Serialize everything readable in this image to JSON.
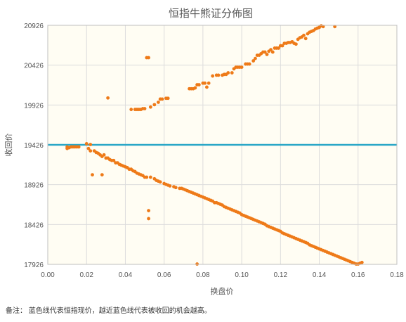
{
  "note": "备注：  蓝色线代表恒指现价，越近蓝色线代表被收回的机会越高。",
  "chart_data": {
    "type": "scatter",
    "title": "恒指牛熊证分佈图",
    "xlabel": "换盘价",
    "ylabel": "收回价",
    "xlim": [
      0,
      0.18
    ],
    "ylim": [
      17926,
      20926
    ],
    "x_ticks": [
      "0.00",
      "0.02",
      "0.04",
      "0.06",
      "0.08",
      "0.10",
      "0.12",
      "0.14",
      "0.16",
      "0.18"
    ],
    "y_ticks": [
      "17926",
      "18426",
      "18926",
      "19426",
      "19926",
      "20426",
      "20926"
    ],
    "grid": true,
    "reference_line": {
      "y": 19426,
      "color": "#2aa7c7"
    },
    "point_color": "#ee7a18",
    "series": [
      {
        "points": [
          [
            0.031,
            20014
          ],
          [
            0.043,
            19870
          ],
          [
            0.045,
            19870
          ],
          [
            0.046,
            19870
          ],
          [
            0.047,
            19870
          ],
          [
            0.048,
            19870
          ],
          [
            0.049,
            19880
          ],
          [
            0.05,
            19880
          ],
          [
            0.051,
            20520
          ],
          [
            0.052,
            20520
          ],
          [
            0.053,
            19900
          ],
          [
            0.055,
            19930
          ],
          [
            0.057,
            19960
          ],
          [
            0.058,
            20000
          ],
          [
            0.059,
            20000
          ],
          [
            0.061,
            20010
          ],
          [
            0.062,
            20010
          ],
          [
            0.073,
            20130
          ],
          [
            0.074,
            20130
          ],
          [
            0.075,
            20130
          ],
          [
            0.076,
            20140
          ],
          [
            0.077,
            20180
          ],
          [
            0.078,
            20180
          ],
          [
            0.08,
            20200
          ],
          [
            0.081,
            20200
          ],
          [
            0.082,
            20150
          ],
          [
            0.083,
            20200
          ],
          [
            0.085,
            20290
          ],
          [
            0.087,
            20300
          ],
          [
            0.088,
            20300
          ],
          [
            0.09,
            20300
          ],
          [
            0.091,
            20310
          ],
          [
            0.092,
            20310
          ],
          [
            0.093,
            20330
          ],
          [
            0.095,
            20330
          ],
          [
            0.096,
            20380
          ],
          [
            0.097,
            20400
          ],
          [
            0.098,
            20400
          ],
          [
            0.099,
            20400
          ],
          [
            0.1,
            20400
          ],
          [
            0.102,
            20440
          ],
          [
            0.103,
            20440
          ],
          [
            0.104,
            20440
          ],
          [
            0.106,
            20480
          ],
          [
            0.107,
            20510
          ],
          [
            0.108,
            20550
          ],
          [
            0.109,
            20550
          ],
          [
            0.11,
            20570
          ],
          [
            0.111,
            20590
          ],
          [
            0.112,
            20590
          ],
          [
            0.113,
            20560
          ],
          [
            0.114,
            20600
          ],
          [
            0.115,
            20620
          ],
          [
            0.116,
            20590
          ],
          [
            0.117,
            20640
          ],
          [
            0.118,
            20640
          ],
          [
            0.119,
            20640
          ],
          [
            0.12,
            20670
          ],
          [
            0.121,
            20670
          ],
          [
            0.122,
            20700
          ],
          [
            0.123,
            20700
          ],
          [
            0.124,
            20710
          ],
          [
            0.125,
            20710
          ],
          [
            0.126,
            20720
          ],
          [
            0.127,
            20700
          ],
          [
            0.128,
            20690
          ],
          [
            0.129,
            20750
          ],
          [
            0.13,
            20770
          ],
          [
            0.131,
            20780
          ],
          [
            0.132,
            20800
          ],
          [
            0.133,
            20760
          ],
          [
            0.134,
            20820
          ],
          [
            0.135,
            20840
          ],
          [
            0.136,
            20850
          ],
          [
            0.137,
            20860
          ],
          [
            0.138,
            20880
          ],
          [
            0.139,
            20890
          ],
          [
            0.14,
            20900
          ],
          [
            0.141,
            20920
          ],
          [
            0.142,
            20910
          ],
          [
            0.148,
            20910
          ]
        ]
      },
      {
        "points": [
          [
            0.01,
            19380
          ],
          [
            0.01,
            19400
          ],
          [
            0.011,
            19390
          ],
          [
            0.012,
            19400
          ],
          [
            0.013,
            19400
          ],
          [
            0.014,
            19400
          ],
          [
            0.015,
            19400
          ],
          [
            0.016,
            19400
          ],
          [
            0.02,
            19440
          ],
          [
            0.021,
            19380
          ],
          [
            0.022,
            19350
          ],
          [
            0.022,
            19430
          ],
          [
            0.023,
            19050
          ],
          [
            0.024,
            19350
          ],
          [
            0.025,
            19330
          ],
          [
            0.026,
            19320
          ],
          [
            0.027,
            19300
          ],
          [
            0.028,
            19280
          ],
          [
            0.028,
            19050
          ],
          [
            0.029,
            19300
          ],
          [
            0.03,
            19260
          ],
          [
            0.031,
            19260
          ],
          [
            0.032,
            19240
          ],
          [
            0.033,
            19230
          ],
          [
            0.034,
            19230
          ],
          [
            0.035,
            19200
          ],
          [
            0.036,
            19200
          ],
          [
            0.037,
            19180
          ],
          [
            0.038,
            19170
          ],
          [
            0.039,
            19160
          ],
          [
            0.04,
            19150
          ],
          [
            0.041,
            19140
          ],
          [
            0.042,
            19120
          ],
          [
            0.043,
            19120
          ],
          [
            0.044,
            19100
          ],
          [
            0.045,
            19090
          ],
          [
            0.046,
            19070
          ],
          [
            0.047,
            19060
          ],
          [
            0.048,
            19050
          ],
          [
            0.049,
            19040
          ],
          [
            0.05,
            19020
          ],
          [
            0.051,
            19020
          ],
          [
            0.052,
            18600
          ],
          [
            0.052,
            18500
          ],
          [
            0.053,
            19020
          ],
          [
            0.055,
            19000
          ],
          [
            0.056,
            18980
          ],
          [
            0.057,
            18970
          ],
          [
            0.058,
            18960
          ],
          [
            0.06,
            18940
          ],
          [
            0.061,
            18930
          ],
          [
            0.062,
            18920
          ],
          [
            0.063,
            18910
          ],
          [
            0.065,
            18900
          ],
          [
            0.066,
            18890
          ],
          [
            0.068,
            18880
          ],
          [
            0.069,
            18880
          ],
          [
            0.07,
            18870
          ],
          [
            0.071,
            18860
          ],
          [
            0.072,
            18850
          ],
          [
            0.073,
            18840
          ],
          [
            0.074,
            18830
          ],
          [
            0.075,
            18820
          ],
          [
            0.076,
            18810
          ],
          [
            0.077,
            17930
          ],
          [
            0.077,
            18800
          ],
          [
            0.078,
            18790
          ],
          [
            0.079,
            18780
          ],
          [
            0.08,
            18770
          ],
          [
            0.081,
            18760
          ],
          [
            0.082,
            18750
          ],
          [
            0.083,
            18740
          ],
          [
            0.084,
            18730
          ],
          [
            0.085,
            18720
          ],
          [
            0.086,
            18700
          ],
          [
            0.087,
            18700
          ],
          [
            0.088,
            18690
          ],
          [
            0.089,
            18680
          ],
          [
            0.09,
            18670
          ],
          [
            0.091,
            18650
          ],
          [
            0.092,
            18640
          ],
          [
            0.093,
            18630
          ],
          [
            0.094,
            18620
          ],
          [
            0.095,
            18610
          ],
          [
            0.096,
            18600
          ],
          [
            0.097,
            18590
          ],
          [
            0.098,
            18580
          ],
          [
            0.099,
            18570
          ],
          [
            0.1,
            18550
          ],
          [
            0.101,
            18540
          ],
          [
            0.102,
            18530
          ],
          [
            0.103,
            18520
          ],
          [
            0.104,
            18510
          ],
          [
            0.105,
            18500
          ],
          [
            0.106,
            18490
          ],
          [
            0.107,
            18480
          ],
          [
            0.108,
            18470
          ],
          [
            0.109,
            18460
          ],
          [
            0.11,
            18450
          ],
          [
            0.111,
            18440
          ],
          [
            0.112,
            18430
          ],
          [
            0.113,
            18410
          ],
          [
            0.114,
            18400
          ],
          [
            0.115,
            18390
          ],
          [
            0.116,
            18380
          ],
          [
            0.117,
            18370
          ],
          [
            0.118,
            18360
          ],
          [
            0.119,
            18350
          ],
          [
            0.12,
            18340
          ],
          [
            0.121,
            18320
          ],
          [
            0.122,
            18310
          ],
          [
            0.123,
            18300
          ],
          [
            0.124,
            18290
          ],
          [
            0.125,
            18280
          ],
          [
            0.126,
            18270
          ],
          [
            0.127,
            18260
          ],
          [
            0.128,
            18250
          ],
          [
            0.129,
            18240
          ],
          [
            0.13,
            18230
          ],
          [
            0.131,
            18220
          ],
          [
            0.132,
            18210
          ],
          [
            0.133,
            18200
          ],
          [
            0.134,
            18190
          ],
          [
            0.135,
            18170
          ],
          [
            0.136,
            18160
          ],
          [
            0.137,
            18150
          ],
          [
            0.138,
            18140
          ],
          [
            0.139,
            18130
          ],
          [
            0.14,
            18120
          ],
          [
            0.141,
            18110
          ],
          [
            0.142,
            18100
          ],
          [
            0.143,
            18090
          ],
          [
            0.144,
            18080
          ],
          [
            0.145,
            18070
          ],
          [
            0.146,
            18060
          ],
          [
            0.147,
            18050
          ],
          [
            0.148,
            18040
          ],
          [
            0.149,
            18030
          ],
          [
            0.15,
            18020
          ],
          [
            0.151,
            18010
          ],
          [
            0.152,
            18000
          ],
          [
            0.153,
            17990
          ],
          [
            0.154,
            17980
          ],
          [
            0.155,
            17970
          ],
          [
            0.156,
            17960
          ],
          [
            0.157,
            17950
          ],
          [
            0.158,
            17940
          ],
          [
            0.159,
            17930
          ],
          [
            0.16,
            17930
          ],
          [
            0.161,
            17940
          ],
          [
            0.162,
            17950
          ]
        ]
      }
    ]
  }
}
